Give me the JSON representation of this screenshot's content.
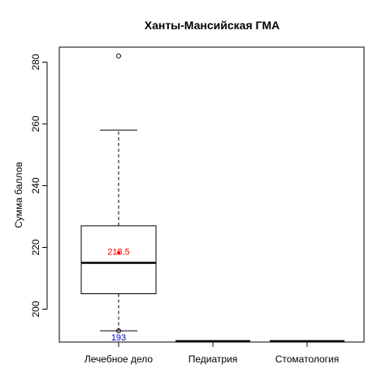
{
  "chart_data": {
    "type": "boxplot",
    "title": "Ханты-Мансийская ГМА",
    "ylabel": "Сумма баллов",
    "xlabel": "",
    "ylim": [
      190,
      285
    ],
    "yticks": [
      200,
      220,
      240,
      260,
      280
    ],
    "categories": [
      "Лечебное дело",
      "Педиатрия",
      "Стоматология"
    ],
    "boxes": [
      {
        "category": "Лечебное дело",
        "whisker_low": 193,
        "q1": 205,
        "median": 215,
        "q3": 227,
        "whisker_high": 258,
        "outliers": [
          282,
          193
        ],
        "mean": 218.5,
        "mean_label": "218.5",
        "min_label": "193"
      },
      {
        "category": "Педиатрия",
        "empty": true,
        "baseline": 189.7
      },
      {
        "category": "Стоматология",
        "empty": true,
        "baseline": 189.7
      }
    ],
    "colors": {
      "mean": "#ff0000",
      "min_label": "#0000cc",
      "box": "#000000"
    },
    "grid": false,
    "legend": "none"
  }
}
